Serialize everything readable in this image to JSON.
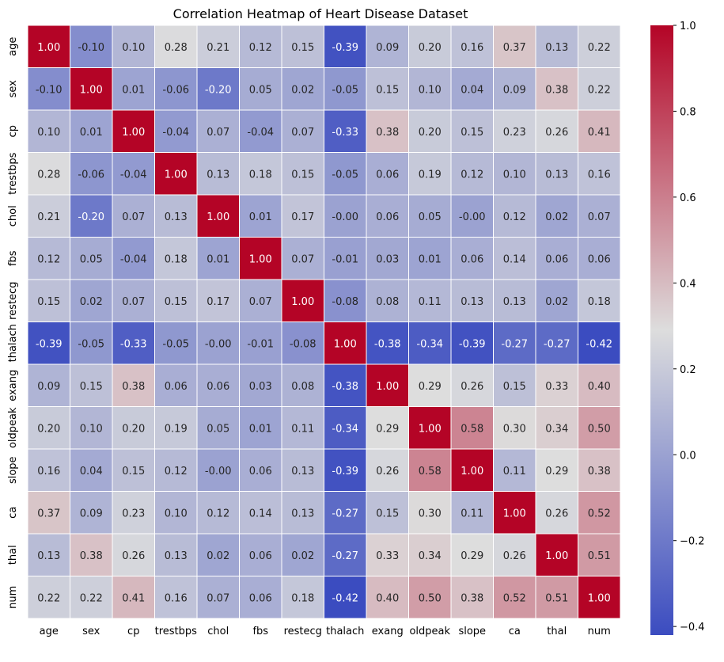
{
  "chart_data": {
    "type": "heatmap",
    "title": "Correlation Heatmap of Heart Disease Dataset",
    "xlabel": "",
    "ylabel": "",
    "labels": [
      "age",
      "sex",
      "cp",
      "trestbps",
      "chol",
      "fbs",
      "restecg",
      "thalach",
      "exang",
      "oldpeak",
      "slope",
      "ca",
      "thal",
      "num"
    ],
    "matrix": [
      [
        1.0,
        -0.1,
        0.1,
        0.28,
        0.21,
        0.12,
        0.15,
        -0.39,
        0.09,
        0.2,
        0.16,
        0.37,
        0.13,
        0.22
      ],
      [
        -0.1,
        1.0,
        0.01,
        -0.06,
        -0.2,
        0.05,
        0.02,
        -0.05,
        0.15,
        0.1,
        0.04,
        0.09,
        0.38,
        0.22
      ],
      [
        0.1,
        0.01,
        1.0,
        -0.04,
        0.07,
        -0.04,
        0.07,
        -0.33,
        0.38,
        0.2,
        0.15,
        0.23,
        0.26,
        0.41
      ],
      [
        0.28,
        -0.06,
        -0.04,
        1.0,
        0.13,
        0.18,
        0.15,
        -0.05,
        0.06,
        0.19,
        0.12,
        0.1,
        0.13,
        0.16
      ],
      [
        0.21,
        -0.2,
        0.07,
        0.13,
        1.0,
        0.01,
        0.17,
        -0.0,
        0.06,
        0.05,
        -0.0,
        0.12,
        0.02,
        0.07
      ],
      [
        0.12,
        0.05,
        -0.04,
        0.18,
        0.01,
        1.0,
        0.07,
        -0.01,
        0.03,
        0.01,
        0.06,
        0.14,
        0.06,
        0.06
      ],
      [
        0.15,
        0.02,
        0.07,
        0.15,
        0.17,
        0.07,
        1.0,
        -0.08,
        0.08,
        0.11,
        0.13,
        0.13,
        0.02,
        0.18
      ],
      [
        -0.39,
        -0.05,
        -0.33,
        -0.05,
        -0.0,
        -0.01,
        -0.08,
        1.0,
        -0.38,
        -0.34,
        -0.39,
        -0.27,
        -0.27,
        -0.42
      ],
      [
        0.09,
        0.15,
        0.38,
        0.06,
        0.06,
        0.03,
        0.08,
        -0.38,
        1.0,
        0.29,
        0.26,
        0.15,
        0.33,
        0.4
      ],
      [
        0.2,
        0.1,
        0.2,
        0.19,
        0.05,
        0.01,
        0.11,
        -0.34,
        0.29,
        1.0,
        0.58,
        0.3,
        0.34,
        0.5
      ],
      [
        0.16,
        0.04,
        0.15,
        0.12,
        -0.0,
        0.06,
        0.13,
        -0.39,
        0.26,
        0.58,
        1.0,
        0.11,
        0.29,
        0.38
      ],
      [
        0.37,
        0.09,
        0.23,
        0.1,
        0.12,
        0.14,
        0.13,
        -0.27,
        0.15,
        0.3,
        0.11,
        1.0,
        0.26,
        0.52
      ],
      [
        0.13,
        0.38,
        0.26,
        0.13,
        0.02,
        0.06,
        0.02,
        -0.27,
        0.33,
        0.34,
        0.29,
        0.26,
        1.0,
        0.51
      ],
      [
        0.22,
        0.22,
        0.41,
        0.16,
        0.07,
        0.06,
        0.18,
        -0.42,
        0.4,
        0.5,
        0.38,
        0.52,
        0.51,
        1.0
      ]
    ],
    "value_format": "2 decimals",
    "colormap": "coolwarm",
    "vmin": -0.42,
    "vmax": 1.0,
    "colorbar_ticks": [
      "1.0",
      "0.8",
      "0.6",
      "0.4",
      "0.2",
      "0.0",
      "−0.2",
      "−0.4"
    ],
    "colorbar_tick_values": [
      1.0,
      0.8,
      0.6,
      0.4,
      0.2,
      0.0,
      -0.2,
      -0.4
    ],
    "grid": false,
    "annotated": true
  },
  "colors": {
    "cold": "#3b4cc0",
    "neutral": "#dddddd",
    "hot": "#b40426",
    "cell_border": "#ffffff",
    "text_dark": "#262626",
    "text_light": "#ffffff"
  }
}
